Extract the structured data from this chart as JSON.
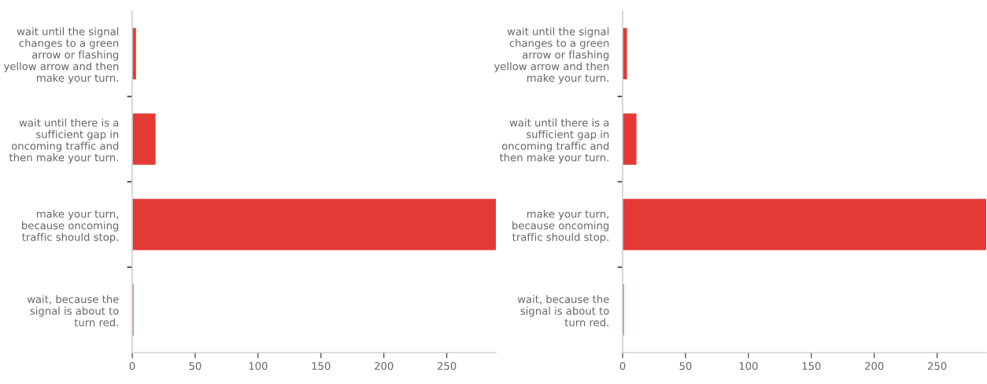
{
  "chart_data": [
    {
      "type": "bar",
      "orientation": "horizontal",
      "categories": [
        "wait until the signal\nchanges to a green\narrow or flashing\nyellow arrow and then\nmake your turn.",
        "wait until there is a\nsufficient gap in\noncoming traffic and\nthen make your turn.",
        "make your turn,\nbecause oncoming\ntraffic should stop.",
        "wait, because the\nsignal is about to\nturn red."
      ],
      "values": [
        3,
        18.5,
        289,
        1
      ],
      "color": "#e53935",
      "xlim": [
        0,
        289
      ],
      "xticks": [
        0,
        50,
        100,
        150,
        200,
        250
      ],
      "grid": false
    },
    {
      "type": "bar",
      "orientation": "horizontal",
      "categories": [
        "wait until the signal\nchanges to a green\narrow or flashing\nyellow arrow and then\nmake your turn.",
        "wait until there is a\nsufficient gap in\noncoming traffic and\nthen make your turn.",
        "make your turn,\nbecause oncoming\ntraffic should stop.",
        "wait, because the\nsignal is about to\nturn red."
      ],
      "values": [
        3.5,
        11,
        289,
        1
      ],
      "color": "#e53935",
      "xlim": [
        0,
        289
      ],
      "xticks": [
        0,
        50,
        100,
        150,
        200,
        250
      ],
      "grid": false
    }
  ]
}
